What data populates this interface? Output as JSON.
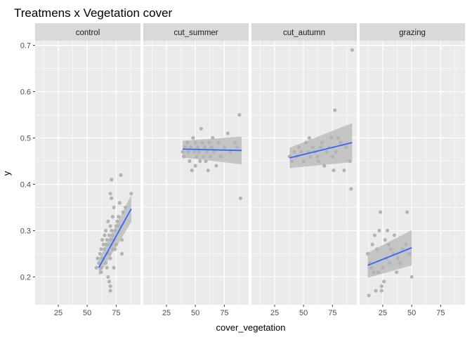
{
  "chart_data": {
    "type": "scatter",
    "title": "Treatmens x Vegetation cover",
    "xlabel": "cover_vegetation",
    "ylabel": "y",
    "xlim": [
      5,
      96
    ],
    "ylim": [
      0.14,
      0.71
    ],
    "x_ticks": [
      25,
      50,
      75
    ],
    "y_ticks": [
      0.2,
      0.3,
      0.4,
      0.5,
      0.6,
      0.7
    ],
    "y_tick_labels": [
      "0.2",
      "0.3",
      "0.4",
      "0.5",
      "0.6",
      "0.7"
    ],
    "grid": true,
    "colors": {
      "panel_bg": "#ebebeb",
      "strip_bg": "#d9d9d9",
      "grid": "#ffffff",
      "points": "#b3b3b3",
      "smooth_line": "#3366ff",
      "ribbon": "#bdbdbd",
      "tick": "#333333"
    },
    "panels": [
      {
        "name": "control",
        "points": [
          [
            58,
            0.22
          ],
          [
            60,
            0.23
          ],
          [
            61,
            0.25
          ],
          [
            62,
            0.26
          ],
          [
            62,
            0.22
          ],
          [
            63,
            0.24
          ],
          [
            63,
            0.28
          ],
          [
            64,
            0.27
          ],
          [
            64,
            0.24
          ],
          [
            65,
            0.26
          ],
          [
            65,
            0.29
          ],
          [
            66,
            0.23
          ],
          [
            66,
            0.3
          ],
          [
            67,
            0.25
          ],
          [
            67,
            0.28
          ],
          [
            67,
            0.22
          ],
          [
            68,
            0.27
          ],
          [
            68,
            0.32
          ],
          [
            68,
            0.2
          ],
          [
            69,
            0.29
          ],
          [
            69,
            0.25
          ],
          [
            69,
            0.19
          ],
          [
            70,
            0.28
          ],
          [
            70,
            0.31
          ],
          [
            70,
            0.24
          ],
          [
            70,
            0.18
          ],
          [
            70,
            0.17
          ],
          [
            71,
            0.27
          ],
          [
            71,
            0.3
          ],
          [
            71,
            0.37
          ],
          [
            71,
            0.41
          ],
          [
            72,
            0.26
          ],
          [
            72,
            0.33
          ],
          [
            72,
            0.29
          ],
          [
            73,
            0.28
          ],
          [
            73,
            0.35
          ],
          [
            74,
            0.3
          ],
          [
            75,
            0.31
          ],
          [
            75,
            0.27
          ],
          [
            76,
            0.32
          ],
          [
            77,
            0.33
          ],
          [
            78,
            0.36
          ],
          [
            79,
            0.42
          ],
          [
            80,
            0.25
          ],
          [
            80,
            0.28
          ],
          [
            81,
            0.34
          ],
          [
            83,
            0.35
          ],
          [
            88,
            0.38
          ],
          [
            78,
            0.31
          ],
          [
            74,
            0.26
          ],
          [
            66,
            0.27
          ],
          [
            62,
            0.21
          ],
          [
            59,
            0.24
          ],
          [
            70,
            0.38
          ],
          [
            73,
            0.22
          ]
        ],
        "fit": {
          "x": [
            60,
            88
          ],
          "y": [
            0.22,
            0.347
          ],
          "lower": [
            0.203,
            0.318
          ],
          "upper": [
            0.239,
            0.377
          ]
        }
      },
      {
        "name": "cut_summer",
        "points": [
          [
            39,
            0.47
          ],
          [
            40,
            0.46
          ],
          [
            41,
            0.48
          ],
          [
            43,
            0.49
          ],
          [
            44,
            0.47
          ],
          [
            45,
            0.45
          ],
          [
            46,
            0.48
          ],
          [
            47,
            0.43
          ],
          [
            48,
            0.5
          ],
          [
            49,
            0.47
          ],
          [
            50,
            0.49
          ],
          [
            50,
            0.44
          ],
          [
            51,
            0.46
          ],
          [
            52,
            0.48
          ],
          [
            53,
            0.47
          ],
          [
            54,
            0.45
          ],
          [
            55,
            0.52
          ],
          [
            56,
            0.49
          ],
          [
            57,
            0.46
          ],
          [
            58,
            0.48
          ],
          [
            59,
            0.45
          ],
          [
            60,
            0.47
          ],
          [
            61,
            0.43
          ],
          [
            62,
            0.49
          ],
          [
            63,
            0.46
          ],
          [
            64,
            0.48
          ],
          [
            65,
            0.5
          ],
          [
            66,
            0.47
          ],
          [
            68,
            0.44
          ],
          [
            70,
            0.49
          ],
          [
            72,
            0.46
          ],
          [
            75,
            0.48
          ],
          [
            78,
            0.51
          ],
          [
            80,
            0.47
          ],
          [
            84,
            0.49
          ],
          [
            86,
            0.48
          ],
          [
            88,
            0.55
          ],
          [
            89,
            0.37
          ]
        ],
        "fit": {
          "x": [
            39,
            90
          ],
          "y": [
            0.476,
            0.473
          ],
          "lower": [
            0.458,
            0.443
          ],
          "upper": [
            0.494,
            0.503
          ]
        }
      },
      {
        "name": "cut_autumn",
        "points": [
          [
            38,
            0.46
          ],
          [
            40,
            0.45
          ],
          [
            42,
            0.47
          ],
          [
            44,
            0.46
          ],
          [
            46,
            0.48
          ],
          [
            48,
            0.47
          ],
          [
            50,
            0.45
          ],
          [
            52,
            0.49
          ],
          [
            54,
            0.47
          ],
          [
            55,
            0.5
          ],
          [
            56,
            0.46
          ],
          [
            58,
            0.48
          ],
          [
            60,
            0.47
          ],
          [
            62,
            0.46
          ],
          [
            63,
            0.45
          ],
          [
            65,
            0.48
          ],
          [
            66,
            0.49
          ],
          [
            68,
            0.44
          ],
          [
            70,
            0.47
          ],
          [
            72,
            0.48
          ],
          [
            74,
            0.5
          ],
          [
            75,
            0.46
          ],
          [
            76,
            0.43
          ],
          [
            77,
            0.56
          ],
          [
            78,
            0.47
          ],
          [
            80,
            0.5
          ],
          [
            82,
            0.49
          ],
          [
            85,
            0.43
          ],
          [
            87,
            0.48
          ],
          [
            90,
            0.45
          ],
          [
            91,
            0.39
          ],
          [
            92,
            0.69
          ]
        ],
        "fit": {
          "x": [
            38,
            92
          ],
          "y": [
            0.457,
            0.49
          ],
          "lower": [
            0.435,
            0.448
          ],
          "upper": [
            0.479,
            0.532
          ]
        }
      },
      {
        "name": "grazing",
        "points": [
          [
            12,
            0.25
          ],
          [
            13,
            0.16
          ],
          [
            14,
            0.23
          ],
          [
            15,
            0.22
          ],
          [
            16,
            0.27
          ],
          [
            17,
            0.21
          ],
          [
            18,
            0.29
          ],
          [
            19,
            0.17
          ],
          [
            20,
            0.26
          ],
          [
            21,
            0.21
          ],
          [
            22,
            0.3
          ],
          [
            23,
            0.34
          ],
          [
            24,
            0.18
          ],
          [
            25,
            0.22
          ],
          [
            26,
            0.19
          ],
          [
            27,
            0.28
          ],
          [
            28,
            0.24
          ],
          [
            30,
            0.27
          ],
          [
            31,
            0.23
          ],
          [
            32,
            0.26
          ],
          [
            34,
            0.25
          ],
          [
            35,
            0.29
          ],
          [
            37,
            0.21
          ],
          [
            38,
            0.24
          ],
          [
            40,
            0.23
          ],
          [
            42,
            0.26
          ],
          [
            45,
            0.27
          ],
          [
            46,
            0.34
          ],
          [
            48,
            0.25
          ],
          [
            50,
            0.2
          ],
          [
            24,
            0.17
          ],
          [
            29,
            0.3
          ]
        ],
        "fit": {
          "x": [
            12,
            50
          ],
          "y": [
            0.225,
            0.263
          ],
          "lower": [
            0.198,
            0.225
          ],
          "upper": [
            0.252,
            0.301
          ]
        }
      }
    ]
  }
}
